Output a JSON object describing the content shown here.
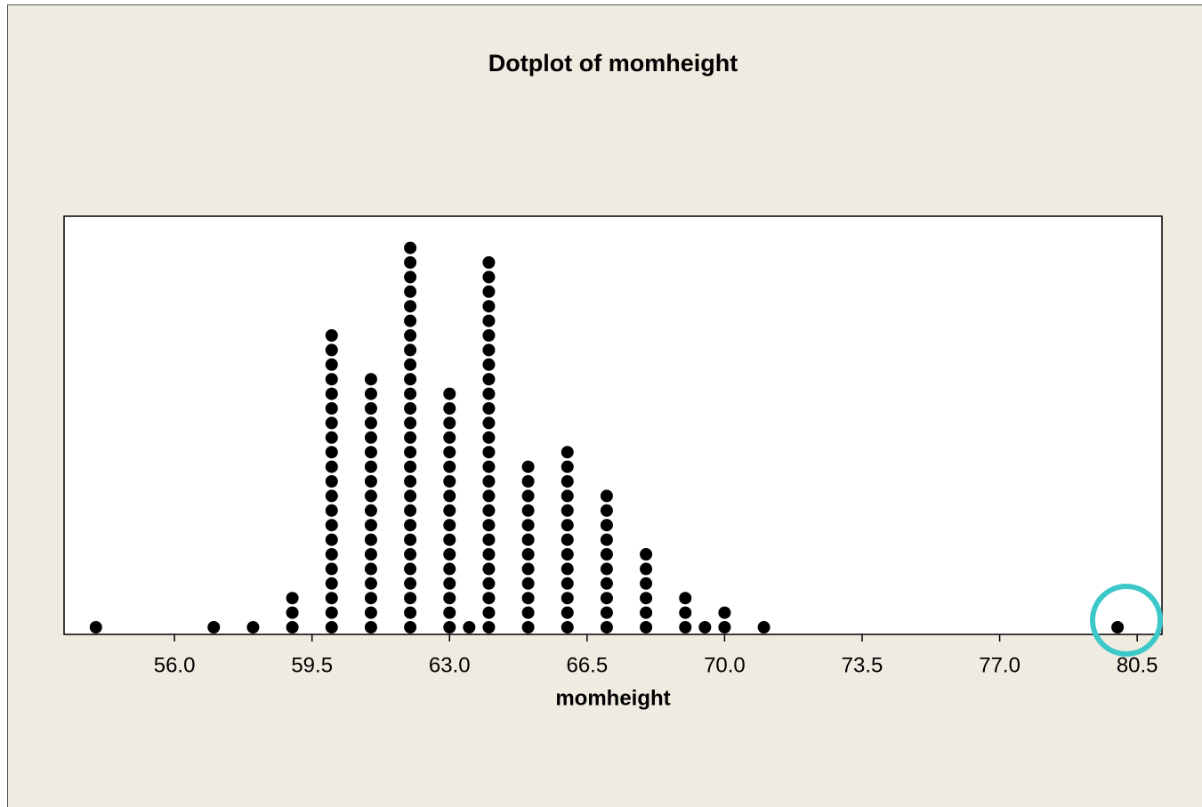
{
  "chart_data": {
    "type": "dotplot",
    "title": "Dotplot of momheight",
    "x_label": "momheight",
    "x": [
      54,
      57,
      58,
      59,
      60,
      61,
      62,
      63,
      63.5,
      64,
      65,
      66,
      67,
      68,
      69,
      69.5,
      70,
      71,
      80
    ],
    "counts": [
      1,
      1,
      1,
      3,
      21,
      18,
      27,
      17,
      1,
      26,
      12,
      13,
      10,
      6,
      3,
      1,
      2,
      1,
      1
    ],
    "color": "#000000",
    "xlim": [
      53.19,
      81.13
    ],
    "xticks": [
      {
        "value": 56,
        "label": "56.0"
      },
      {
        "value": 59.5,
        "label": "59.5"
      },
      {
        "value": 63,
        "label": "63.0"
      },
      {
        "value": 66.5,
        "label": "66.5"
      },
      {
        "value": 70,
        "label": "70.0"
      },
      {
        "value": 73.5,
        "label": "73.5"
      },
      {
        "value": 77,
        "label": "77.0"
      },
      {
        "value": 80.5,
        "label": "80.5"
      }
    ]
  }
}
